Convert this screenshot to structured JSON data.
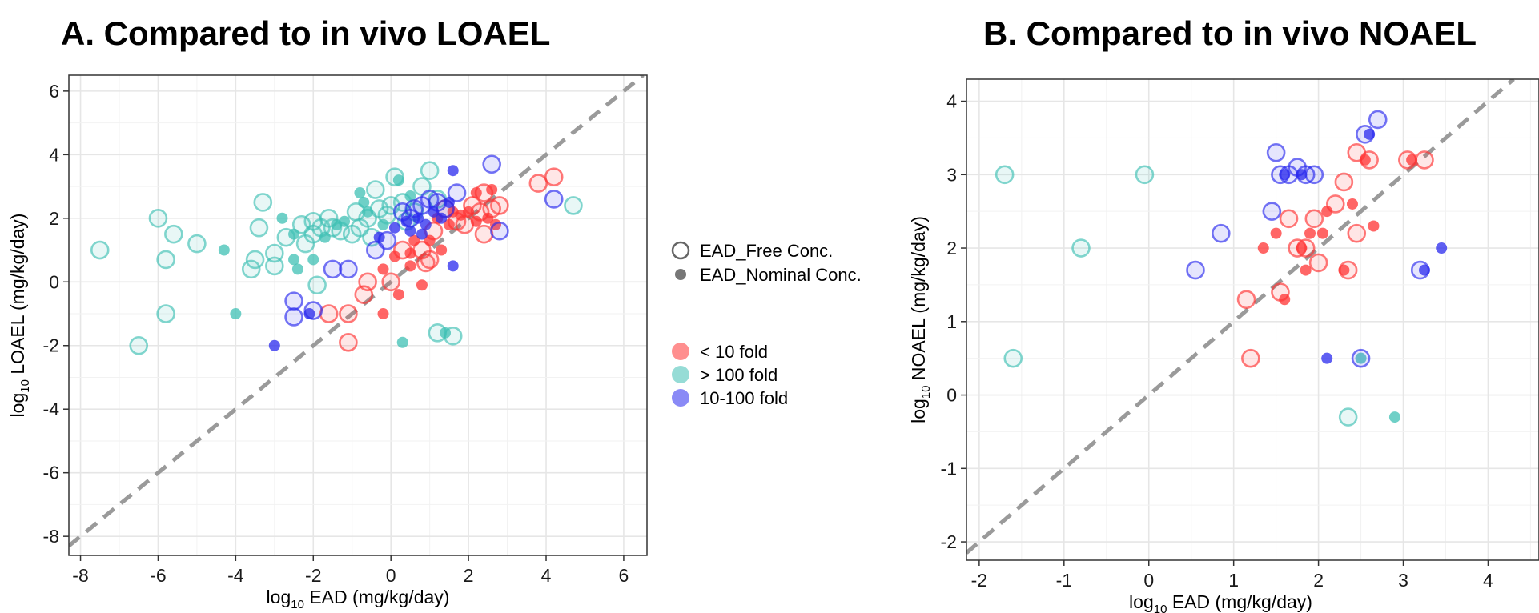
{
  "panel_a": {
    "title": "A.  Compared to in vivo LOAEL"
  },
  "panel_b": {
    "title": "B. Compared to in vivo NOAEL"
  },
  "legend": {
    "shape_items": [
      {
        "label": "EAD_Free Conc.",
        "style": "open"
      },
      {
        "label": "EAD_Nominal Conc.",
        "style": "filled"
      }
    ],
    "color_items": [
      {
        "label": "< 10 fold",
        "color": "#ff3333"
      },
      {
        "label": "> 100 fold",
        "color": "#3fc0b4"
      },
      {
        "label": "10-100 fold",
        "color": "#2a2aee"
      }
    ]
  },
  "colors": {
    "red": "#ff3333",
    "teal": "#3fc0b4",
    "blue": "#2a2aee",
    "diagonal": "#9a9a9a",
    "grid": "#ebebeb"
  },
  "chart_data": [
    {
      "type": "scatter",
      "title": "A.  Compared to in vivo LOAEL",
      "xlabel": {
        "base": "log",
        "sub": "10",
        "rest": " EAD (mg/kg/day)"
      },
      "ylabel": {
        "base": "log",
        "sub": "10",
        "rest": " LOAEL (mg/kg/day)"
      },
      "xlim": [
        -8.3,
        6.6
      ],
      "ylim": [
        -8.6,
        6.5
      ],
      "xticks": [
        -8,
        -6,
        -4,
        -2,
        0,
        2,
        4,
        6
      ],
      "yticks": [
        -8,
        -6,
        -4,
        -2,
        0,
        2,
        4,
        6
      ],
      "grid": true,
      "reference_line": "y = x",
      "series": [
        {
          "name": "< 10 fold",
          "color": "#ff3333",
          "points": [
            [
              -1.6,
              -1.0,
              "o"
            ],
            [
              -1.1,
              -1.0,
              "o"
            ],
            [
              -1.1,
              -1.9,
              "o"
            ],
            [
              -0.7,
              -0.4,
              "o"
            ],
            [
              -0.6,
              0.0,
              "o"
            ],
            [
              -0.2,
              0.4,
              "f"
            ],
            [
              0.0,
              0.0,
              "o"
            ],
            [
              0.1,
              0.8,
              "f"
            ],
            [
              0.2,
              -0.4,
              "f"
            ],
            [
              0.3,
              1.0,
              "o"
            ],
            [
              0.5,
              0.5,
              "f"
            ],
            [
              0.6,
              1.3,
              "f"
            ],
            [
              0.8,
              1.0,
              "o"
            ],
            [
              0.9,
              0.6,
              "o"
            ],
            [
              1.0,
              1.3,
              "f"
            ],
            [
              1.1,
              1.6,
              "o"
            ],
            [
              1.2,
              2.0,
              "f"
            ],
            [
              1.3,
              1.0,
              "f"
            ],
            [
              1.4,
              2.3,
              "o"
            ],
            [
              1.5,
              1.8,
              "f"
            ],
            [
              1.6,
              2.2,
              "f"
            ],
            [
              1.7,
              1.9,
              "o"
            ],
            [
              1.8,
              2.1,
              "f"
            ],
            [
              1.9,
              1.8,
              "o"
            ],
            [
              2.0,
              2.2,
              "f"
            ],
            [
              2.1,
              2.4,
              "o"
            ],
            [
              2.2,
              1.9,
              "f"
            ],
            [
              2.3,
              2.2,
              "o"
            ],
            [
              2.4,
              1.5,
              "o"
            ],
            [
              2.5,
              2.0,
              "f"
            ],
            [
              2.6,
              2.3,
              "o"
            ],
            [
              2.7,
              1.8,
              "f"
            ],
            [
              2.8,
              2.4,
              "o"
            ],
            [
              2.4,
              2.8,
              "o"
            ],
            [
              2.6,
              2.9,
              "f"
            ],
            [
              2.2,
              2.8,
              "f"
            ],
            [
              3.8,
              3.1,
              "o"
            ],
            [
              4.2,
              3.3,
              "o"
            ],
            [
              0.8,
              -0.1,
              "f"
            ],
            [
              -0.2,
              -1.0,
              "f"
            ],
            [
              0.5,
              0.9,
              "f"
            ],
            [
              1.0,
              0.7,
              "o"
            ]
          ]
        },
        {
          "name": "> 100 fold",
          "color": "#3fc0b4",
          "points": [
            [
              -7.5,
              1.0,
              "o"
            ],
            [
              -6.5,
              -2.0,
              "o"
            ],
            [
              -6.0,
              2.0,
              "o"
            ],
            [
              -5.8,
              -1.0,
              "o"
            ],
            [
              -5.8,
              0.7,
              "o"
            ],
            [
              -5.6,
              1.5,
              "o"
            ],
            [
              -5.0,
              1.2,
              "o"
            ],
            [
              -4.3,
              1.0,
              "f"
            ],
            [
              -4.0,
              -1.0,
              "f"
            ],
            [
              -3.6,
              0.4,
              "o"
            ],
            [
              -3.5,
              0.7,
              "o"
            ],
            [
              -3.4,
              1.7,
              "o"
            ],
            [
              -3.3,
              2.5,
              "o"
            ],
            [
              -3.0,
              0.5,
              "o"
            ],
            [
              -3.0,
              0.9,
              "o"
            ],
            [
              -2.8,
              2.0,
              "f"
            ],
            [
              -2.7,
              1.4,
              "o"
            ],
            [
              -2.5,
              1.5,
              "f"
            ],
            [
              -2.5,
              0.7,
              "f"
            ],
            [
              -2.4,
              0.4,
              "f"
            ],
            [
              -2.2,
              1.2,
              "o"
            ],
            [
              -2.0,
              1.5,
              "o"
            ],
            [
              -2.0,
              1.9,
              "o"
            ],
            [
              -2.0,
              0.7,
              "f"
            ],
            [
              -1.9,
              -0.1,
              "o"
            ],
            [
              -1.8,
              1.7,
              "o"
            ],
            [
              -1.7,
              1.4,
              "f"
            ],
            [
              -1.6,
              2.0,
              "o"
            ],
            [
              -1.5,
              1.7,
              "o"
            ],
            [
              -1.3,
              1.6,
              "o"
            ],
            [
              -1.2,
              1.9,
              "f"
            ],
            [
              -1.0,
              1.5,
              "o"
            ],
            [
              -0.9,
              2.2,
              "o"
            ],
            [
              -0.8,
              1.7,
              "o"
            ],
            [
              -0.7,
              2.5,
              "f"
            ],
            [
              -0.6,
              2.0,
              "o"
            ],
            [
              -0.5,
              1.4,
              "o"
            ],
            [
              -0.4,
              2.9,
              "o"
            ],
            [
              -0.3,
              2.3,
              "o"
            ],
            [
              -0.2,
              1.8,
              "f"
            ],
            [
              -0.1,
              2.1,
              "o"
            ],
            [
              0.0,
              2.4,
              "o"
            ],
            [
              0.1,
              3.3,
              "o"
            ],
            [
              0.2,
              3.2,
              "f"
            ],
            [
              0.3,
              2.5,
              "o"
            ],
            [
              0.5,
              2.7,
              "f"
            ],
            [
              0.6,
              2.2,
              "o"
            ],
            [
              0.8,
              3.0,
              "o"
            ],
            [
              1.0,
              3.5,
              "o"
            ],
            [
              1.2,
              2.6,
              "o"
            ],
            [
              0.3,
              -1.9,
              "f"
            ],
            [
              1.2,
              -1.6,
              "o"
            ],
            [
              1.4,
              -1.6,
              "f"
            ],
            [
              1.6,
              -1.7,
              "o"
            ],
            [
              4.7,
              2.4,
              "o"
            ],
            [
              -0.6,
              2.2,
              "f"
            ],
            [
              -1.4,
              1.8,
              "f"
            ],
            [
              -2.3,
              1.8,
              "o"
            ],
            [
              -0.8,
              2.8,
              "f"
            ],
            [
              0.4,
              1.9,
              "o"
            ]
          ]
        },
        {
          "name": "10-100 fold",
          "color": "#2a2aee",
          "points": [
            [
              -3.0,
              -2.0,
              "f"
            ],
            [
              -2.5,
              -1.1,
              "o"
            ],
            [
              -2.5,
              -0.6,
              "o"
            ],
            [
              -2.1,
              -1.0,
              "f"
            ],
            [
              -2.0,
              -0.9,
              "o"
            ],
            [
              -1.5,
              0.4,
              "o"
            ],
            [
              -1.1,
              0.4,
              "o"
            ],
            [
              -0.4,
              1.0,
              "o"
            ],
            [
              -0.3,
              1.4,
              "f"
            ],
            [
              -0.1,
              1.3,
              "o"
            ],
            [
              0.1,
              1.7,
              "f"
            ],
            [
              0.3,
              2.2,
              "o"
            ],
            [
              0.4,
              1.9,
              "f"
            ],
            [
              0.5,
              1.6,
              "f"
            ],
            [
              0.6,
              2.3,
              "o"
            ],
            [
              0.7,
              2.0,
              "f"
            ],
            [
              0.8,
              2.4,
              "o"
            ],
            [
              0.9,
              1.8,
              "f"
            ],
            [
              1.0,
              2.6,
              "o"
            ],
            [
              1.1,
              2.2,
              "f"
            ],
            [
              1.2,
              2.5,
              "o"
            ],
            [
              1.3,
              2.0,
              "f"
            ],
            [
              1.4,
              2.3,
              "o"
            ],
            [
              1.5,
              2.5,
              "f"
            ],
            [
              1.6,
              3.5,
              "f"
            ],
            [
              1.7,
              2.8,
              "o"
            ],
            [
              1.6,
              0.5,
              "f"
            ],
            [
              2.6,
              3.7,
              "o"
            ],
            [
              2.8,
              1.6,
              "o"
            ],
            [
              4.2,
              2.6,
              "o"
            ],
            [
              0.5,
              2.0,
              "o"
            ],
            [
              0.8,
              1.5,
              "f"
            ]
          ]
        }
      ]
    },
    {
      "type": "scatter",
      "title": "B. Compared to in vivo NOAEL",
      "xlabel": {
        "base": "log",
        "sub": "10",
        "rest": " EAD (mg/kg/day)"
      },
      "ylabel": {
        "base": "log",
        "sub": "10",
        "rest": " NOAEL (mg/kg/day)"
      },
      "xlim": [
        -2.15,
        4.6
      ],
      "ylim": [
        -2.25,
        4.3
      ],
      "xticks": [
        -2,
        -1,
        0,
        1,
        2,
        3,
        4
      ],
      "yticks": [
        -2,
        -1,
        0,
        1,
        2,
        3,
        4
      ],
      "grid": true,
      "reference_line": "y = x",
      "series": [
        {
          "name": "< 10 fold",
          "color": "#ff3333",
          "points": [
            [
              1.15,
              1.3,
              "o"
            ],
            [
              1.2,
              0.5,
              "o"
            ],
            [
              1.35,
              2.0,
              "f"
            ],
            [
              1.5,
              2.2,
              "f"
            ],
            [
              1.55,
              1.4,
              "o"
            ],
            [
              1.6,
              1.3,
              "f"
            ],
            [
              1.65,
              2.4,
              "o"
            ],
            [
              1.75,
              2.0,
              "o"
            ],
            [
              1.8,
              2.0,
              "f"
            ],
            [
              1.85,
              2.0,
              "o"
            ],
            [
              1.85,
              1.7,
              "f"
            ],
            [
              1.95,
              2.4,
              "o"
            ],
            [
              2.0,
              1.8,
              "o"
            ],
            [
              2.05,
              2.2,
              "f"
            ],
            [
              2.1,
              2.5,
              "f"
            ],
            [
              2.2,
              2.6,
              "o"
            ],
            [
              2.3,
              2.9,
              "o"
            ],
            [
              2.35,
              1.7,
              "o"
            ],
            [
              2.4,
              2.6,
              "f"
            ],
            [
              2.45,
              2.2,
              "o"
            ],
            [
              2.45,
              3.3,
              "o"
            ],
            [
              2.55,
              3.2,
              "f"
            ],
            [
              2.6,
              3.2,
              "o"
            ],
            [
              2.65,
              2.3,
              "f"
            ],
            [
              3.05,
              3.2,
              "o"
            ],
            [
              3.1,
              3.2,
              "f"
            ],
            [
              3.25,
              3.2,
              "o"
            ],
            [
              2.3,
              1.7,
              "f"
            ],
            [
              1.9,
              2.2,
              "f"
            ]
          ]
        },
        {
          "name": "> 100 fold",
          "color": "#3fc0b4",
          "points": [
            [
              -1.7,
              3.0,
              "o"
            ],
            [
              -1.6,
              0.5,
              "o"
            ],
            [
              -0.8,
              2.0,
              "o"
            ],
            [
              -0.05,
              3.0,
              "o"
            ],
            [
              2.35,
              -0.3,
              "o"
            ],
            [
              2.5,
              0.5,
              "f"
            ],
            [
              2.9,
              -0.3,
              "f"
            ]
          ]
        },
        {
          "name": "10-100 fold",
          "color": "#2a2aee",
          "points": [
            [
              0.55,
              1.7,
              "o"
            ],
            [
              0.85,
              2.2,
              "o"
            ],
            [
              1.45,
              2.5,
              "o"
            ],
            [
              1.5,
              3.3,
              "o"
            ],
            [
              1.55,
              3.0,
              "o"
            ],
            [
              1.6,
              3.0,
              "f"
            ],
            [
              1.65,
              3.0,
              "o"
            ],
            [
              1.75,
              3.1,
              "o"
            ],
            [
              1.8,
              3.0,
              "f"
            ],
            [
              1.85,
              3.0,
              "o"
            ],
            [
              1.95,
              3.0,
              "o"
            ],
            [
              2.1,
              0.5,
              "f"
            ],
            [
              2.5,
              0.5,
              "o"
            ],
            [
              2.55,
              3.55,
              "o"
            ],
            [
              2.6,
              3.55,
              "f"
            ],
            [
              2.7,
              3.75,
              "o"
            ],
            [
              3.2,
              1.7,
              "o"
            ],
            [
              3.25,
              1.7,
              "f"
            ],
            [
              3.45,
              2.0,
              "f"
            ]
          ]
        }
      ]
    }
  ]
}
